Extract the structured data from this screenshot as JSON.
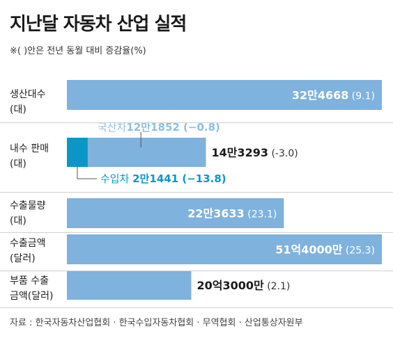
{
  "title": "지난달 자동차 산업 실적",
  "note": "※( )안은 전년 동월 대비 증감율(%)",
  "source": "자료 : 한국자동차산업협회 · 한국수입자동차협회 · 무역협회 · 산업통상자원부",
  "colors": {
    "bar": "#7fb2dc",
    "import_bar": "#0a97c8",
    "label_light": "#8dbfe3",
    "label_teal": "#0a97c8",
    "value_on_bar": "#ffffff"
  },
  "chart_data": {
    "type": "bar",
    "orientation": "horizontal",
    "categories": [
      "생산대수\n(대)",
      "내수 판매\n(대)",
      "수출물량\n(대)",
      "수출금액\n(달러)",
      "부품 수출\n금액(달러)"
    ],
    "values": [
      324668,
      143293,
      223633,
      5140000000,
      2030000000
    ],
    "value_labels": [
      "32만4668",
      "14만3293",
      "22만3633",
      "51억4000만",
      "20억3000만"
    ],
    "change_labels": [
      "(9.1)",
      "(-3.0)",
      "(23.1)",
      "(25.3)",
      "(2.1)"
    ],
    "breakdown": {
      "category": "내수 판매\n(대)",
      "parts": [
        {
          "name": "국산차",
          "value": 121852,
          "value_label": "12만1852",
          "change_label": "(−0.8)"
        },
        {
          "name": "수입차",
          "value": 21441,
          "value_label": "2만1441",
          "change_label": "(−13.8)"
        }
      ]
    }
  }
}
